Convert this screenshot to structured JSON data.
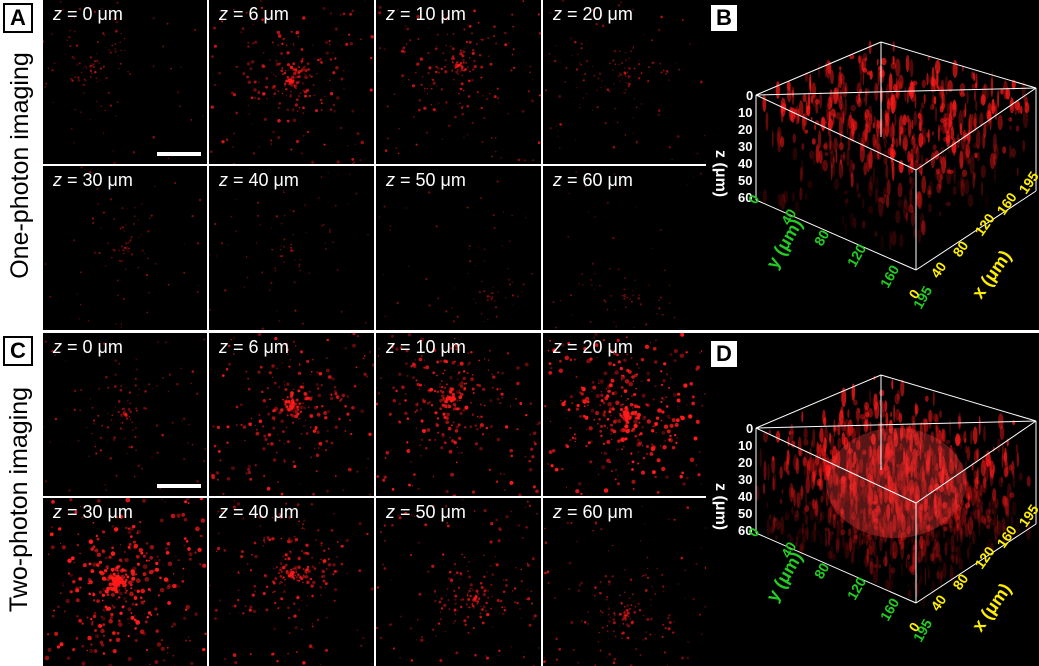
{
  "rows": {
    "top": "One-photon imaging",
    "bottom": "Two-photon imaging"
  },
  "panels": {
    "A": "A",
    "B": "B",
    "C": "C",
    "D": "D"
  },
  "z_italic": "z",
  "depth_labels": [
    "= 0 μm",
    "= 6 μm",
    "= 10 μm",
    "= 20 μm",
    "= 30 μm",
    "= 40 μm",
    "= 50 μm",
    "= 60 μm"
  ],
  "volume_axes": {
    "z_label": "z (μm)",
    "z_ticks": [
      "0",
      "10",
      "20",
      "30",
      "40",
      "50",
      "60"
    ],
    "y_label": "y (μm)",
    "y_ticks": [
      "0",
      "40",
      "80",
      "120",
      "160",
      "195"
    ],
    "x_label": "x (μm)",
    "x_ticks": [
      "0",
      "40",
      "80",
      "120",
      "160",
      "195"
    ]
  },
  "colors": {
    "signal": "#ff1a1a",
    "axis_y": "#22cc22",
    "axis_x": "#ffee00",
    "axis_z": "#ffffff"
  }
}
